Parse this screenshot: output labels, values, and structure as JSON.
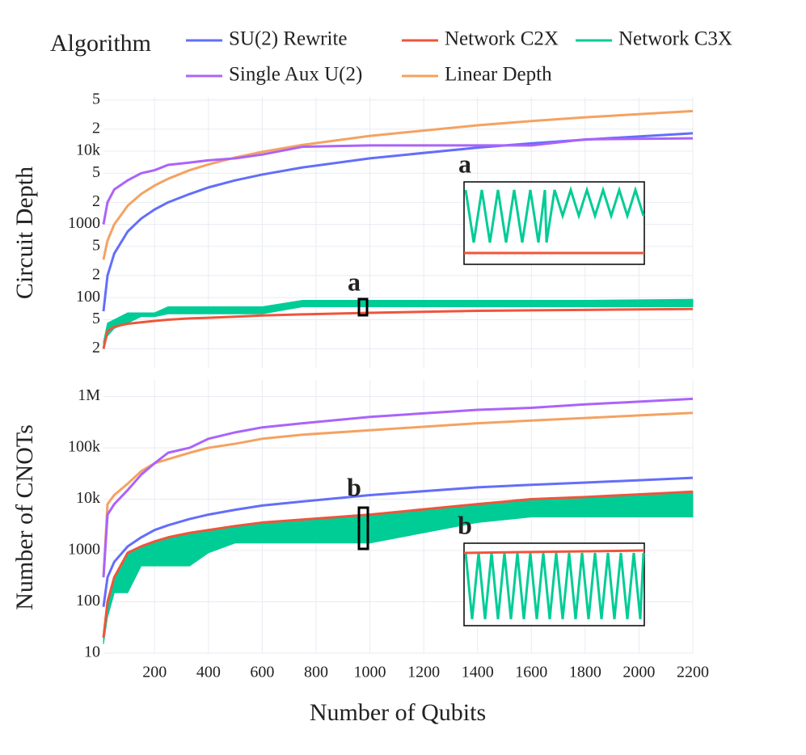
{
  "legend_title": "Algorithm",
  "inset_labels": [
    "a",
    "b"
  ],
  "chart_data": [
    {
      "type": "line",
      "ylabel": "Circuit Depth",
      "log_y": true,
      "grid": true,
      "x": [
        10,
        25,
        50,
        100,
        150,
        200,
        250,
        330,
        400,
        500,
        600,
        750,
        1000,
        1400,
        1600,
        1800,
        2200
      ],
      "xlim": [
        10,
        2200
      ],
      "xticks": [
        200,
        400,
        600,
        800,
        1000,
        1200,
        1400,
        1600,
        1800,
        2000,
        2200
      ],
      "ylim": [
        11,
        55000
      ],
      "yticks": [
        {
          "value": 20,
          "label": "2"
        },
        {
          "value": 50,
          "label": "5"
        },
        100,
        {
          "value": 200,
          "label": "2"
        },
        {
          "value": 500,
          "label": "5"
        },
        1000,
        {
          "value": 2000,
          "label": "2"
        },
        {
          "value": 5000,
          "label": "5"
        },
        {
          "value": 10000,
          "label": "10k"
        },
        {
          "value": 20000,
          "label": "2"
        },
        {
          "value": 50000,
          "label": "5"
        }
      ],
      "series": [
        {
          "name": "SU(2) Rewrite",
          "color": "#636efa",
          "values": [
            65,
            200,
            400,
            800,
            1200,
            1600,
            2000,
            2600,
            3200,
            4000,
            4800,
            6000,
            8000,
            11200,
            12800,
            14400,
            17600
          ]
        },
        {
          "name": "Network C2X",
          "color": "#ef553b",
          "values": [
            20,
            35,
            40,
            44,
            46,
            48,
            50,
            52,
            53,
            55,
            57,
            59,
            62,
            66,
            67,
            68,
            70
          ]
        },
        {
          "name": "Network C3X",
          "color": "#00cc96",
          "values": [
            25,
            45,
            50,
            62,
            62,
            62,
            75,
            75,
            75,
            75,
            75,
            92,
            92,
            92,
            92,
            92,
            95
          ],
          "low": [
            20,
            30,
            38,
            45,
            55,
            55,
            60,
            60,
            60,
            60,
            60,
            75,
            75,
            75,
            75,
            75,
            75
          ]
        },
        {
          "name": "Single Aux U(2)",
          "color": "#ab63fa",
          "values": [
            1000,
            2000,
            3000,
            4000,
            5000,
            5500,
            6500,
            7000,
            7500,
            8000,
            9000,
            11500,
            12000,
            12000,
            12000,
            14500,
            15000
          ]
        },
        {
          "name": "Linear Depth",
          "color": "#f4a261",
          "values": [
            330,
            600,
            1000,
            1800,
            2600,
            3400,
            4200,
            5500,
            6600,
            8200,
            9800,
            12200,
            16200,
            22600,
            25800,
            29000,
            35400
          ]
        }
      ]
    },
    {
      "type": "line",
      "ylabel": "Number of CNOTs",
      "xlabel": "Number of Qubits",
      "log_y": true,
      "grid": true,
      "x": [
        10,
        25,
        50,
        100,
        150,
        200,
        250,
        330,
        400,
        500,
        600,
        750,
        1000,
        1400,
        1600,
        1800,
        2200
      ],
      "xlim": [
        10,
        2200
      ],
      "xticks": [
        200,
        400,
        600,
        800,
        1000,
        1200,
        1400,
        1600,
        1800,
        2000,
        2200
      ],
      "ylim": [
        10,
        2100000
      ],
      "yticks": [
        10,
        100,
        1000,
        {
          "value": 10000,
          "label": "10k"
        },
        {
          "value": 100000,
          "label": "100k"
        },
        {
          "value": 1000000,
          "label": "1M"
        }
      ],
      "series": [
        {
          "name": "SU(2) Rewrite",
          "color": "#636efa",
          "values": [
            80,
            300,
            600,
            1200,
            1800,
            2500,
            3100,
            4100,
            5000,
            6200,
            7500,
            9000,
            12000,
            17000,
            19000,
            21000,
            26000
          ]
        },
        {
          "name": "Network C2X",
          "color": "#ef553b",
          "values": [
            20,
            100,
            300,
            900,
            1200,
            1500,
            1800,
            2200,
            2500,
            3000,
            3500,
            4000,
            5000,
            8000,
            10000,
            11000,
            14000
          ]
        },
        {
          "name": "Network C3X",
          "color": "#00cc96",
          "values": [
            20,
            100,
            300,
            900,
            1200,
            1500,
            1800,
            2200,
            2500,
            3000,
            3500,
            4000,
            5000,
            8000,
            10000,
            11000,
            14000
          ],
          "low": [
            15,
            50,
            150,
            150,
            500,
            500,
            500,
            500,
            900,
            1400,
            1400,
            1400,
            1400,
            3500,
            4500,
            4500,
            4500
          ]
        },
        {
          "name": "Single Aux U(2)",
          "color": "#ab63fa",
          "values": [
            300,
            5000,
            8000,
            15000,
            30000,
            50000,
            80000,
            100000,
            150000,
            200000,
            250000,
            300000,
            400000,
            550000,
            600000,
            700000,
            900000
          ]
        },
        {
          "name": "Linear Depth",
          "color": "#f4a261",
          "values": [
            300,
            8000,
            12000,
            20000,
            35000,
            50000,
            60000,
            80000,
            100000,
            120000,
            150000,
            180000,
            220000,
            300000,
            340000,
            380000,
            480000
          ]
        }
      ]
    }
  ]
}
